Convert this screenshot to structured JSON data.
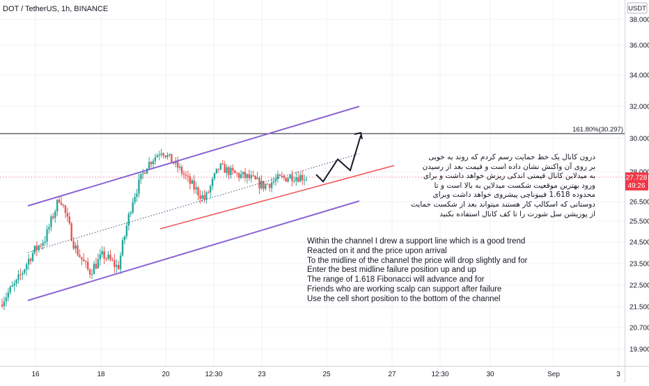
{
  "header": {
    "title": "DOT / TetherUS, 1h, BINANCE",
    "currency": "USDT"
  },
  "colors": {
    "up": "#26a69a",
    "down": "#ef5350",
    "channel": "#8a63d2",
    "support": "#f05050",
    "midline": "#3d4a6b",
    "fib": "#131722",
    "grid": "#eef1f6",
    "price_label_bg": "#f23645",
    "price_dash": "#f7a1a8"
  },
  "chart_data": {
    "type": "candlestick",
    "symbol": "DOT / TetherUS",
    "interval": "1h",
    "exchange": "BINANCE",
    "y_ticks": [
      19.9,
      20.7,
      21.5,
      22.5,
      23.5,
      24.5,
      25.5,
      26.5,
      28.0,
      30.0,
      32.0,
      34.0,
      36.0,
      38.0
    ],
    "y_tick_labels": [
      "19.900",
      "20.700",
      "21.500",
      "22.500",
      "23.500",
      "24.500",
      "25.500",
      "26.500",
      "28.000",
      "30.000",
      "32.000",
      "34.000",
      "36.000",
      "38.000"
    ],
    "x_ticks": [
      "16",
      "18",
      "20",
      "12:30",
      "23",
      "25",
      "27",
      "12:30",
      "30",
      "Sep",
      "3"
    ],
    "last_price": "27.728",
    "countdown": "49:26",
    "fib_label": "161.80%(30.297)",
    "close_path": [
      21.8,
      22.6,
      23.9,
      24.7,
      26.8,
      24.3,
      23.1,
      23.9,
      23.3,
      26.6,
      28.4,
      29.3,
      28.4,
      27.4,
      26.6,
      28.3,
      27.9,
      27.7,
      27.3,
      27.6,
      27.8,
      27.73
    ]
  },
  "annotations": {
    "english": [
      "Within the channel I drew a support line which is a good trend",
      "Reacted on it and the price upon arrival",
      "To the midline of the channel the price will drop slightly and for",
      "Enter the best midline failure position up and up",
      "The range of 1.618 Fibonacci will advance and for",
      "Friends who are working scalp can support after failure",
      "Use the cell short position to the bottom of the channel"
    ],
    "persian": [
      "درون کانال یک خط حمایت رسم کردم که روند به خوبی",
      "بر روی آن واکنش نشان داده است و قیمت بعد از رسیدن",
      "به میدلاین کانال قیمتی اندکی ریزش خواهد داشت و برای",
      "ورود بهترین موقعیت شکست میدلاین به بالا است و تا",
      "محدوده 1.618 فیبوناچی پیشروی خواهد داشت وبرای",
      "دوستانی که اسکالپ کار هستند میتواند بعد از شکست حمایت",
      "از پوزیشن سل شورت را تا کف کانال استفاده بکنید"
    ]
  }
}
